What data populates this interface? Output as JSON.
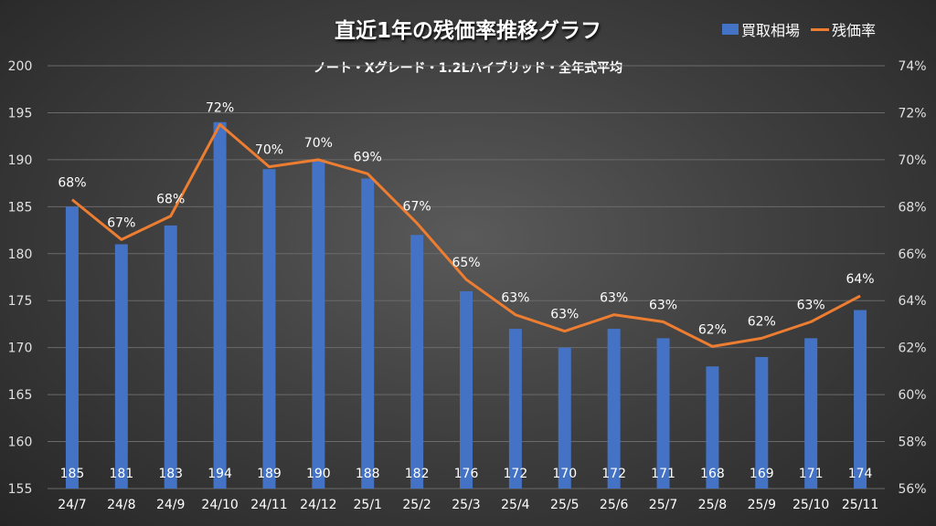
{
  "chart_data": {
    "type": "bar+line",
    "title": "直近1年の残価率推移グラフ",
    "subtitle": "ノート・Xグレード・1.2Lハイブリッド・全年式平均",
    "categories": [
      "24/7",
      "24/8",
      "24/9",
      "24/10",
      "24/11",
      "24/12",
      "25/1",
      "25/2",
      "25/3",
      "25/4",
      "25/5",
      "25/6",
      "25/7",
      "25/8",
      "25/9",
      "25/10",
      "25/11"
    ],
    "series": [
      {
        "name": "買取相場",
        "type": "bar",
        "axis": "left",
        "color": "#4472C4",
        "values": [
          185,
          181,
          183,
          194,
          189,
          190,
          188,
          182,
          176,
          172,
          170,
          172,
          171,
          168,
          169,
          171,
          174
        ],
        "labels": [
          "185",
          "181",
          "183",
          "194",
          "189",
          "190",
          "188",
          "182",
          "176",
          "172",
          "170",
          "172",
          "171",
          "168",
          "169",
          "171",
          "174"
        ]
      },
      {
        "name": "残価率",
        "type": "line",
        "axis": "right",
        "color": "#ED7D31",
        "values": [
          68.3,
          66.6,
          67.6,
          71.5,
          69.7,
          70.0,
          69.4,
          67.3,
          64.9,
          63.4,
          62.7,
          63.4,
          63.1,
          62.05,
          62.4,
          63.1,
          64.2
        ],
        "labels": [
          "68%",
          "67%",
          "68%",
          "72%",
          "70%",
          "70%",
          "69%",
          "67%",
          "65%",
          "63%",
          "63%",
          "63%",
          "63%",
          "62%",
          "62%",
          "63%",
          "64%"
        ]
      }
    ],
    "left_axis": {
      "ylim": [
        155,
        200
      ],
      "ticks": [
        "155",
        "160",
        "165",
        "170",
        "175",
        "180",
        "185",
        "190",
        "195",
        "200"
      ]
    },
    "right_axis": {
      "ylim": [
        56,
        74
      ],
      "ticks": [
        "56%",
        "58%",
        "60%",
        "62%",
        "64%",
        "66%",
        "68%",
        "70%",
        "72%",
        "74%"
      ]
    },
    "grid": true,
    "legend": "top-right"
  }
}
